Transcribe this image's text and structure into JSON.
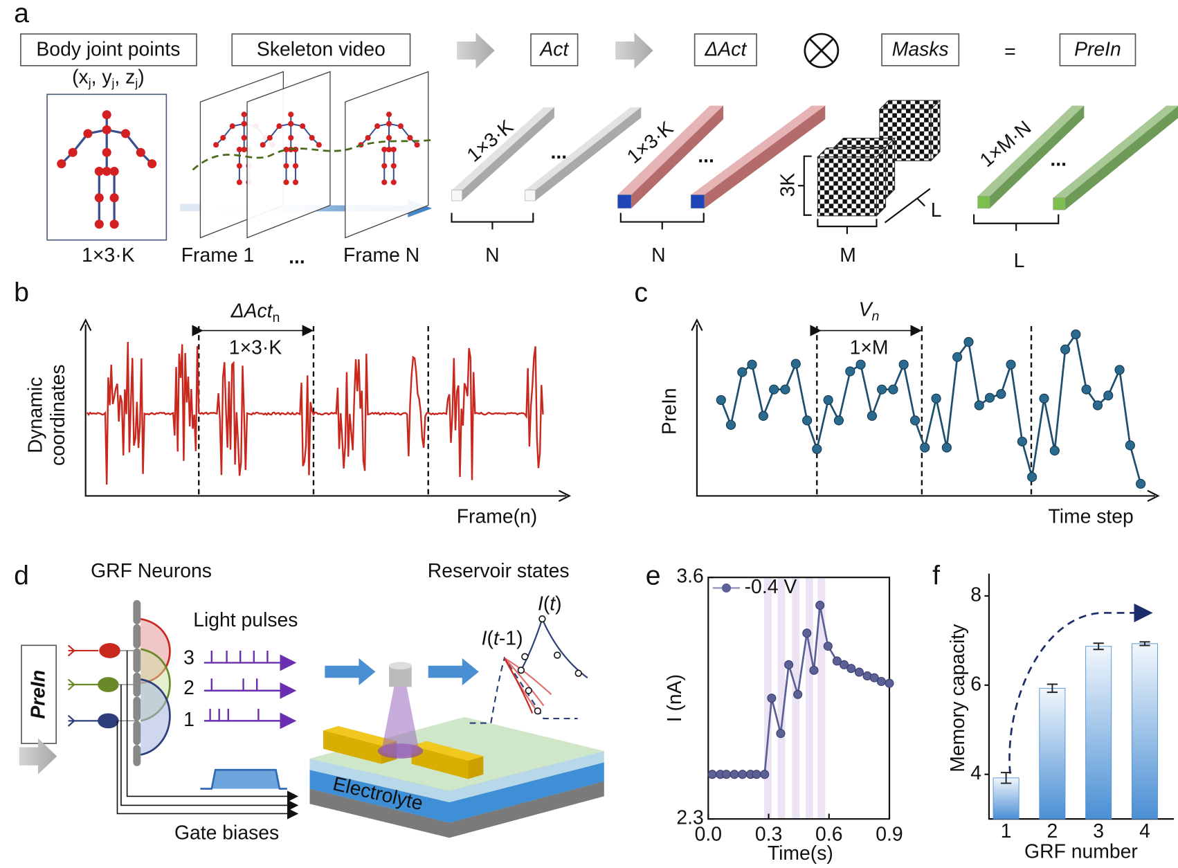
{
  "a": {
    "panel": "a",
    "boxes": [
      "Body joint points",
      "Skeleton video",
      "Act",
      "ΔAct",
      "Masks",
      "PreIn"
    ],
    "coords": [
      "(x",
      "j",
      ", y",
      "j",
      ", z",
      "j",
      ")"
    ],
    "equals": "=",
    "ellipsis": "...",
    "bottom_labels": [
      "1×3·K",
      "Frame 1",
      "Frame N",
      "N",
      "N",
      "M",
      "L"
    ],
    "bar_labels": [
      "1×3·K",
      "1×3·K",
      "1×M·N"
    ],
    "mask_labels": [
      "3K",
      "L"
    ]
  },
  "b": {
    "panel": "b",
    "annotation": [
      "ΔAct",
      "n"
    ],
    "width_label": "1×3·K",
    "ylabel": [
      "Dynamic",
      "coordinates"
    ],
    "xlabel": "Frame(n)"
  },
  "c": {
    "panel": "c",
    "annotation": [
      "V",
      "n"
    ],
    "width_label": "1×M",
    "ylabel": "PreIn",
    "xlabel": "Time step"
  },
  "d": {
    "panel": "d",
    "titles": [
      "GRF Neurons",
      "Reservoir states"
    ],
    "light_pulses": "Light pulses",
    "channels": [
      "3",
      "2",
      "1"
    ],
    "input": "PreIn",
    "gate_biases": "Gate biases",
    "electrolyte": "Electrolyte",
    "current_t": [
      "I",
      "(",
      "t",
      ")"
    ],
    "current_prev": [
      "I",
      "(",
      "t",
      "-1)"
    ]
  },
  "chart_data": [
    {
      "panel": "e",
      "type": "line",
      "xlabel": "Time(s)",
      "ylabel": "I (nA)",
      "x": [
        0.02,
        0.06,
        0.09,
        0.13,
        0.17,
        0.21,
        0.24,
        0.28,
        0.315,
        0.36,
        0.4,
        0.445,
        0.49,
        0.525,
        0.555,
        0.595,
        0.64,
        0.675,
        0.71,
        0.75,
        0.79,
        0.825,
        0.86,
        0.9
      ],
      "series": [
        {
          "name": "-0.4 V",
          "color": "#5b6096",
          "values": [
            2.54,
            2.54,
            2.54,
            2.54,
            2.54,
            2.54,
            2.54,
            2.54,
            2.95,
            2.76,
            3.13,
            2.97,
            3.3,
            3.1,
            3.45,
            3.23,
            3.15,
            3.13,
            3.11,
            3.09,
            3.07,
            3.06,
            3.04,
            3.03
          ]
        }
      ],
      "xlim": [
        0,
        0.9
      ],
      "ylim": [
        2.3,
        3.6
      ],
      "xticks": [
        {
          "value": 0,
          "label": "0.0"
        },
        0.3,
        0.6,
        0.9
      ],
      "yticks": [
        2.3,
        3.6
      ],
      "legend": "upper left"
    },
    {
      "panel": "f",
      "type": "bar",
      "xlabel": "GRF number",
      "ylabel": "Memory capacity",
      "categories": [
        "1",
        "2",
        "3",
        "4"
      ],
      "values": [
        3.92,
        5.93,
        6.87,
        6.93
      ],
      "errors": [
        0.12,
        0.09,
        0.07,
        0.04
      ],
      "color": "#4a8fd4",
      "ylim": [
        3,
        8.5
      ],
      "yticks": [
        4,
        6,
        8
      ]
    }
  ]
}
